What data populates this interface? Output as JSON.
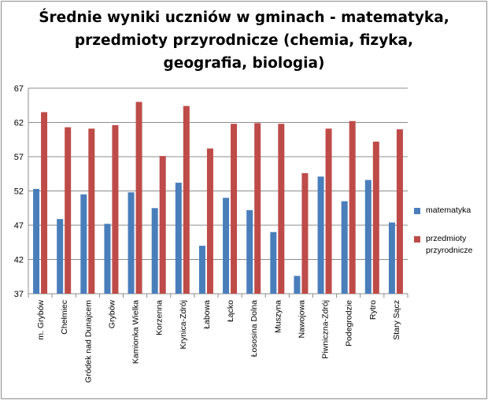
{
  "chart_data": {
    "type": "bar",
    "title_lines": [
      "Średnie wyniki uczniów w gminach - matematyka,",
      "przedmioty przyrodnicze (chemia, fizyka,",
      "geografia, biologia)"
    ],
    "categories": [
      "m. Grybów",
      "Chełmiec",
      "Gródek nad Dunajcem",
      "Grybów",
      "Kamionka Wielka",
      "Korzenna",
      "Krynica-Zdrój",
      "Łabowa",
      "Łącko",
      "Łososina Dolna",
      "Muszyna",
      "Nawojowa",
      "Piwniczna-Zdrój",
      "Podegrodzie",
      "Rytro",
      "Stary Sącz"
    ],
    "series": [
      {
        "name": "matematyka",
        "color": "#4a7ebb",
        "values": [
          52.3,
          47.9,
          51.5,
          47.2,
          51.8,
          49.5,
          53.2,
          44.0,
          51.0,
          49.2,
          46.0,
          39.6,
          54.1,
          50.5,
          53.6,
          47.4
        ]
      },
      {
        "name": "przedmioty przyrodnicze",
        "color": "#be4b48",
        "values": [
          63.5,
          61.3,
          61.1,
          61.6,
          65.0,
          57.1,
          64.4,
          58.2,
          61.8,
          61.9,
          61.8,
          54.6,
          61.1,
          62.2,
          59.2,
          61.0
        ]
      }
    ],
    "ylim": [
      37,
      67
    ],
    "yticks": [
      "37",
      "42",
      "47",
      "52",
      "57",
      "62",
      "67"
    ],
    "grid": true,
    "legend_position": "right"
  }
}
